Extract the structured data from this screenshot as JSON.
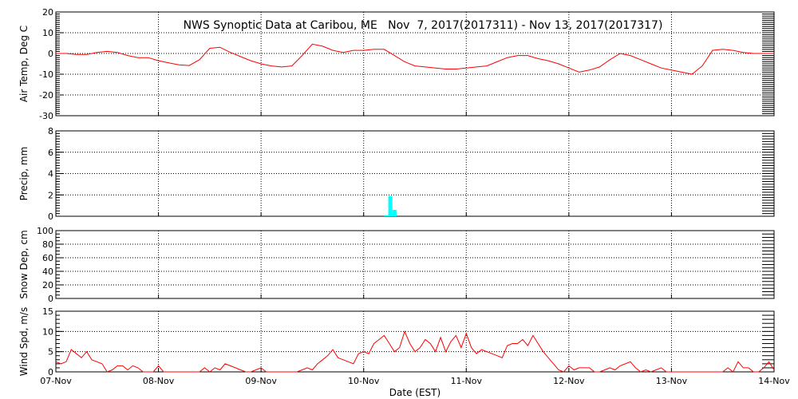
{
  "title": "NWS Synoptic Data at Caribou, ME   Nov  7, 2017(2017311) - Nov 13, 2017(2017317)",
  "x_axis": {
    "label": "Date (EST)",
    "ticks": [
      "07-Nov",
      "08-Nov",
      "09-Nov",
      "10-Nov",
      "11-Nov",
      "12-Nov",
      "13-Nov",
      "14-Nov"
    ]
  },
  "colors": {
    "line": "#ff0000",
    "precip": "#00ffff",
    "grid": "#000000"
  },
  "chart_data": [
    {
      "type": "line",
      "ylabel": "Air Temp, Deg C",
      "ylim": [
        -30,
        20
      ],
      "yticks": [
        -30,
        -20,
        -10,
        0,
        10,
        20
      ],
      "xlim": [
        0,
        7
      ],
      "series": [
        {
          "x": [
            0.0,
            0.1,
            0.2,
            0.3,
            0.4,
            0.5,
            0.6,
            0.7,
            0.8,
            0.9,
            1.0,
            1.1,
            1.2,
            1.3,
            1.4,
            1.5,
            1.6,
            1.7,
            1.8,
            1.9,
            2.0,
            2.1,
            2.2,
            2.3,
            2.4,
            2.5,
            2.6,
            2.7,
            2.8,
            2.9,
            3.0,
            3.1,
            3.2,
            3.3,
            3.4,
            3.5,
            3.6,
            3.7,
            3.8,
            3.9,
            4.0,
            4.1,
            4.2,
            4.3,
            4.4,
            4.5,
            4.6,
            4.7,
            4.8,
            4.9,
            5.0,
            5.1,
            5.2,
            5.3,
            5.4,
            5.5,
            5.6,
            5.7,
            5.8,
            5.9,
            6.0,
            6.1,
            6.2,
            6.3,
            6.4,
            6.5,
            6.6,
            6.7,
            6.8,
            6.9,
            7.0
          ],
          "y": [
            0.0,
            0.0,
            -0.5,
            -0.5,
            0.5,
            1.0,
            0.5,
            -1.0,
            -2.0,
            -2.0,
            -3.5,
            -4.5,
            -5.5,
            -5.8,
            -3.0,
            2.5,
            3.0,
            0.5,
            -1.5,
            -3.5,
            -5.0,
            -6.0,
            -6.5,
            -6.0,
            -1.0,
            4.5,
            3.5,
            1.5,
            0.5,
            1.5,
            1.5,
            2.0,
            2.0,
            -1.0,
            -4.0,
            -6.0,
            -6.5,
            -7.0,
            -7.5,
            -7.5,
            -7.0,
            -6.5,
            -6.0,
            -4.0,
            -2.0,
            -1.0,
            -1.0,
            -2.5,
            -3.5,
            -5.0,
            -7.0,
            -9.0,
            -8.0,
            -6.5,
            -3.0,
            0.0,
            -1.0,
            -3.0,
            -5.0,
            -7.0,
            -8.0,
            -9.0,
            -10.0,
            -6.0,
            1.5,
            2.0,
            1.5,
            0.5,
            0.0,
            0.0,
            0.0
          ]
        }
      ]
    },
    {
      "type": "bar",
      "ylabel": "Precip, mm",
      "ylim": [
        0,
        8
      ],
      "yticks": [
        0,
        2,
        4,
        6,
        8
      ],
      "xlim": [
        0,
        7
      ],
      "x": [
        3.2,
        3.24,
        3.28
      ],
      "values": [
        0.1,
        1.9,
        0.6
      ]
    },
    {
      "type": "line",
      "ylabel": "Snow Dep, cm",
      "ylim": [
        0,
        100
      ],
      "yticks": [
        0,
        20,
        40,
        60,
        80,
        100
      ],
      "xlim": [
        0,
        7
      ],
      "series": [
        {
          "x": [],
          "y": []
        }
      ]
    },
    {
      "type": "line",
      "ylabel": "Wind Spd, m/s",
      "ylim": [
        0,
        15
      ],
      "yticks": [
        0,
        5,
        10,
        15
      ],
      "xlim": [
        0,
        7
      ],
      "series": [
        {
          "x": [
            0.0,
            0.05,
            0.1,
            0.15,
            0.2,
            0.25,
            0.3,
            0.35,
            0.4,
            0.45,
            0.5,
            0.55,
            0.6,
            0.65,
            0.7,
            0.75,
            0.8,
            0.85,
            0.9,
            0.95,
            1.0,
            1.05,
            1.1,
            1.15,
            1.2,
            1.25,
            1.3,
            1.35,
            1.4,
            1.45,
            1.5,
            1.55,
            1.6,
            1.65,
            1.7,
            1.75,
            1.8,
            1.85,
            1.9,
            1.95,
            2.0,
            2.05,
            2.1,
            2.15,
            2.2,
            2.25,
            2.3,
            2.35,
            2.4,
            2.45,
            2.5,
            2.55,
            2.6,
            2.65,
            2.7,
            2.75,
            2.8,
            2.85,
            2.9,
            2.95,
            3.0,
            3.05,
            3.1,
            3.15,
            3.2,
            3.25,
            3.3,
            3.35,
            3.4,
            3.45,
            3.5,
            3.55,
            3.6,
            3.65,
            3.7,
            3.75,
            3.8,
            3.85,
            3.9,
            3.95,
            4.0,
            4.05,
            4.1,
            4.15,
            4.2,
            4.25,
            4.3,
            4.35,
            4.4,
            4.45,
            4.5,
            4.55,
            4.6,
            4.65,
            4.7,
            4.75,
            4.8,
            4.85,
            4.9,
            4.95,
            5.0,
            5.05,
            5.1,
            5.15,
            5.2,
            5.25,
            5.3,
            5.35,
            5.4,
            5.45,
            5.5,
            5.55,
            5.6,
            5.65,
            5.7,
            5.75,
            5.8,
            5.85,
            5.9,
            5.95,
            6.0,
            6.05,
            6.1,
            6.15,
            6.2,
            6.25,
            6.3,
            6.35,
            6.4,
            6.45,
            6.5,
            6.55,
            6.6,
            6.65,
            6.7,
            6.75,
            6.8,
            6.85,
            6.9,
            6.95,
            7.0
          ],
          "y": [
            2.5,
            2.0,
            2.5,
            5.5,
            4.5,
            3.5,
            5.0,
            3.0,
            2.5,
            2.0,
            0.0,
            0.5,
            1.5,
            1.5,
            0.5,
            1.5,
            1.0,
            0.0,
            0.0,
            0.0,
            1.5,
            0.0,
            0.0,
            0.0,
            0.0,
            0.0,
            0.0,
            0.0,
            0.0,
            1.0,
            0.0,
            1.0,
            0.5,
            2.0,
            1.5,
            1.0,
            0.5,
            0.0,
            0.0,
            0.5,
            1.0,
            0.0,
            0.0,
            0.0,
            0.0,
            0.0,
            0.0,
            0.0,
            0.5,
            1.0,
            0.5,
            2.0,
            3.0,
            4.0,
            5.5,
            3.5,
            3.0,
            2.5,
            2.0,
            4.5,
            5.0,
            4.5,
            7.0,
            8.0,
            9.0,
            7.0,
            5.0,
            6.0,
            10.0,
            7.0,
            5.0,
            6.0,
            8.0,
            7.0,
            5.0,
            8.5,
            5.0,
            7.5,
            9.0,
            6.0,
            9.5,
            6.0,
            4.5,
            5.5,
            5.0,
            4.5,
            4.0,
            3.5,
            6.5,
            7.0,
            7.0,
            8.0,
            6.5,
            9.0,
            7.0,
            5.0,
            3.5,
            2.0,
            0.5,
            0.0,
            1.5,
            0.5,
            1.0,
            1.0,
            1.0,
            0.0,
            0.0,
            0.5,
            1.0,
            0.5,
            1.5,
            2.0,
            2.5,
            1.0,
            0.0,
            0.5,
            0.0,
            0.5,
            1.0,
            0.0,
            0.0,
            0.0,
            0.0,
            0.0,
            0.0,
            0.0,
            0.0,
            0.0,
            0.0,
            0.0,
            0.0,
            1.0,
            0.0,
            2.5,
            1.0,
            1.0,
            0.0,
            0.0,
            1.0,
            2.5,
            0.5
          ]
        }
      ]
    }
  ]
}
